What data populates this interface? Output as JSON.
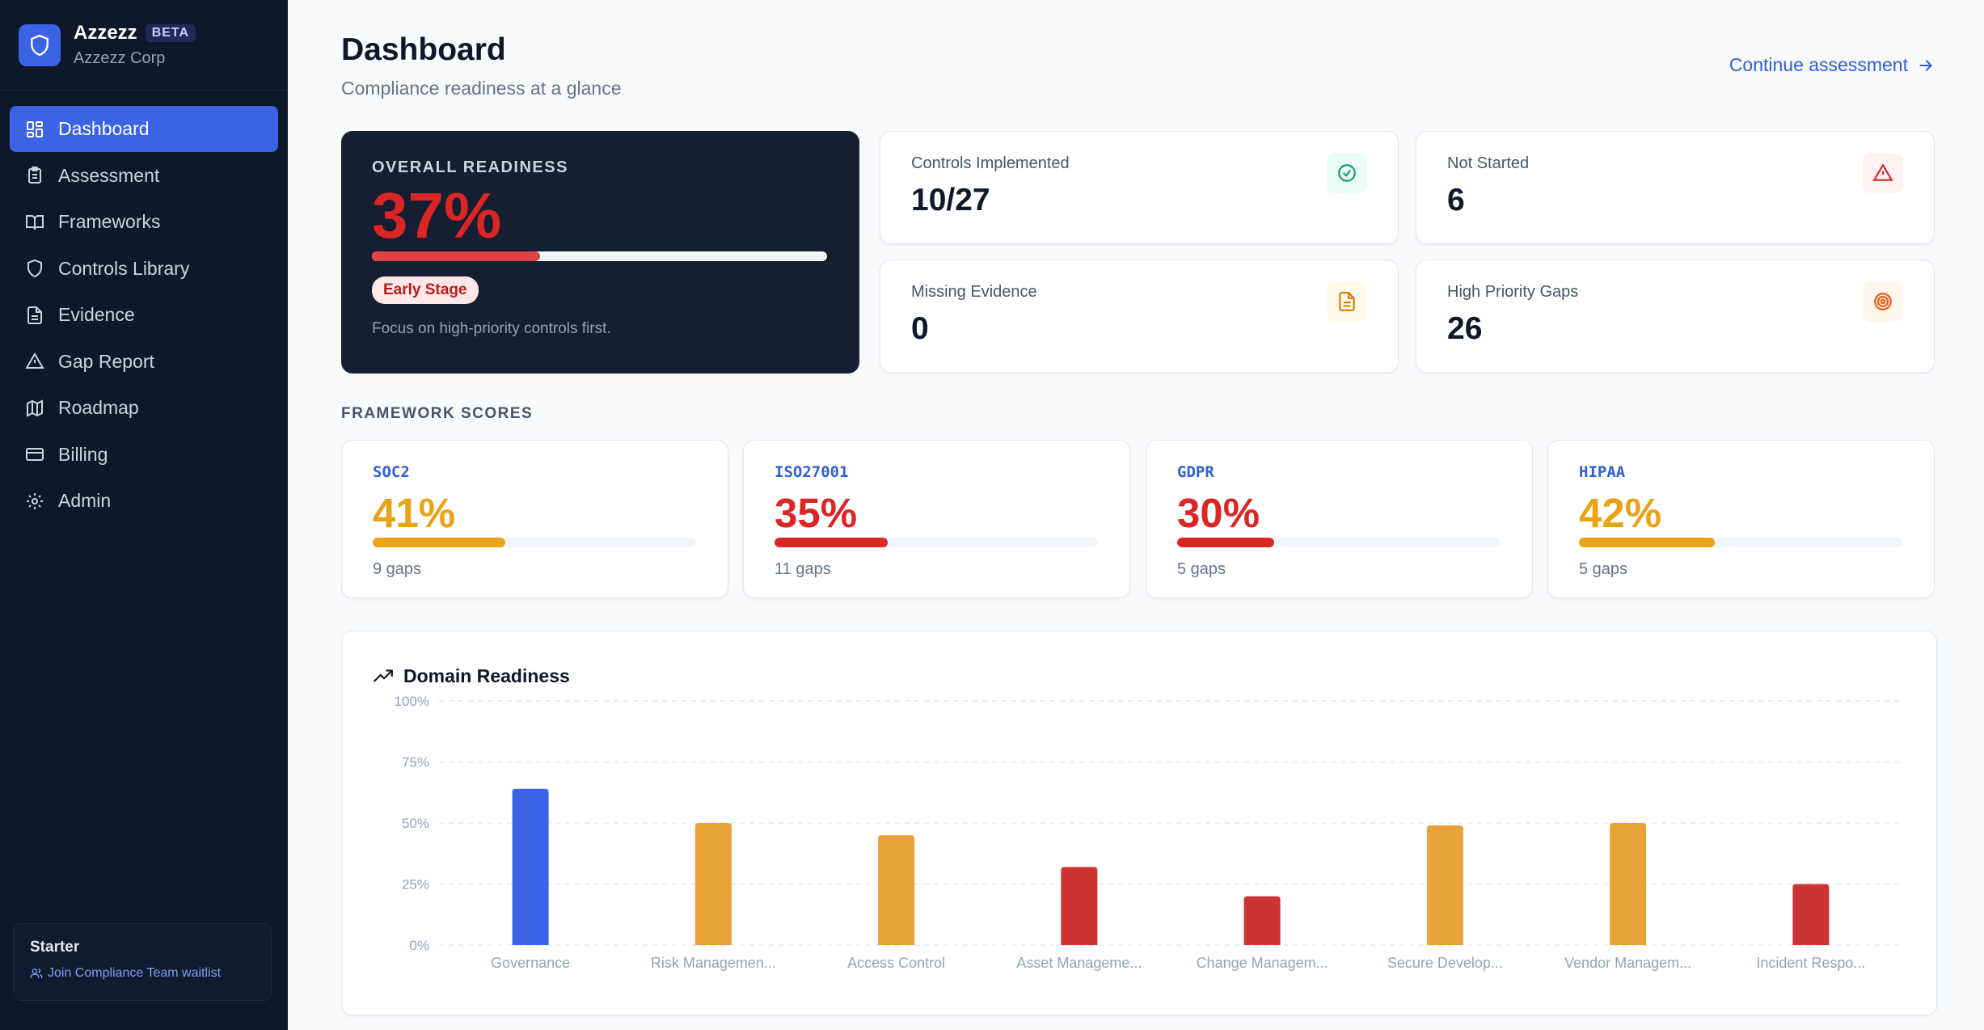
{
  "brand": {
    "name": "Azzezz",
    "badge": "BETA",
    "org": "Azzezz Corp"
  },
  "nav": [
    {
      "label": "Dashboard",
      "icon": "dashboard-grid-icon",
      "active": true
    },
    {
      "label": "Assessment",
      "icon": "clipboard-icon",
      "active": false
    },
    {
      "label": "Frameworks",
      "icon": "book-icon",
      "active": false
    },
    {
      "label": "Controls Library",
      "icon": "shield-icon",
      "active": false
    },
    {
      "label": "Evidence",
      "icon": "document-icon",
      "active": false
    },
    {
      "label": "Gap Report",
      "icon": "warning-icon",
      "active": false
    },
    {
      "label": "Roadmap",
      "icon": "map-icon",
      "active": false
    },
    {
      "label": "Billing",
      "icon": "credit-card-icon",
      "active": false
    },
    {
      "label": "Admin",
      "icon": "gear-icon",
      "active": false
    }
  ],
  "plan": {
    "name": "Starter",
    "link": "Join Compliance Team waitlist"
  },
  "header": {
    "title": "Dashboard",
    "subtitle": "Compliance readiness at a glance",
    "action": "Continue assessment"
  },
  "overall": {
    "label": "OVERALL READINESS",
    "value": "37%",
    "progress": 0.37,
    "stage": "Early Stage",
    "note": "Focus on high-priority controls first."
  },
  "stats": [
    {
      "label": "Controls Implemented",
      "value": "10/27",
      "icon": "check-circle-icon"
    },
    {
      "label": "Not Started",
      "value": "6",
      "icon": "alert-triangle-icon"
    },
    {
      "label": "Missing Evidence",
      "value": "0",
      "icon": "file-text-icon"
    },
    {
      "label": "High Priority Gaps",
      "value": "26",
      "icon": "target-icon"
    }
  ],
  "frameworks_label": "FRAMEWORK SCORES",
  "frameworks": [
    {
      "name": "SOC2",
      "value": "41%",
      "progress": 0.41,
      "gaps": "9 gaps",
      "color": "#e8a317"
    },
    {
      "name": "ISO27001",
      "value": "35%",
      "progress": 0.35,
      "gaps": "11 gaps",
      "color": "#dc2626"
    },
    {
      "name": "GDPR",
      "value": "30%",
      "progress": 0.3,
      "gaps": "5 gaps",
      "color": "#dc2626"
    },
    {
      "name": "HIPAA",
      "value": "42%",
      "progress": 0.42,
      "gaps": "5 gaps",
      "color": "#e8a317"
    }
  ],
  "chart_data": {
    "type": "bar",
    "title": "Domain Readiness",
    "categories": [
      "Governance",
      "Risk Managemen...",
      "Access Control",
      "Asset Manageme...",
      "Change Managem...",
      "Secure Develop...",
      "Vendor Managem...",
      "Incident Respo..."
    ],
    "values": [
      64,
      50,
      45,
      32,
      20,
      49,
      50,
      25
    ],
    "colors": [
      "#3b63e6",
      "#e8a23a",
      "#e8a23a",
      "#cc3333",
      "#cc3333",
      "#e8a23a",
      "#e8a23a",
      "#cc3333"
    ],
    "ylim": [
      0,
      100
    ],
    "yticks": [
      "0%",
      "25%",
      "50%",
      "75%",
      "100%"
    ],
    "grid": true
  }
}
